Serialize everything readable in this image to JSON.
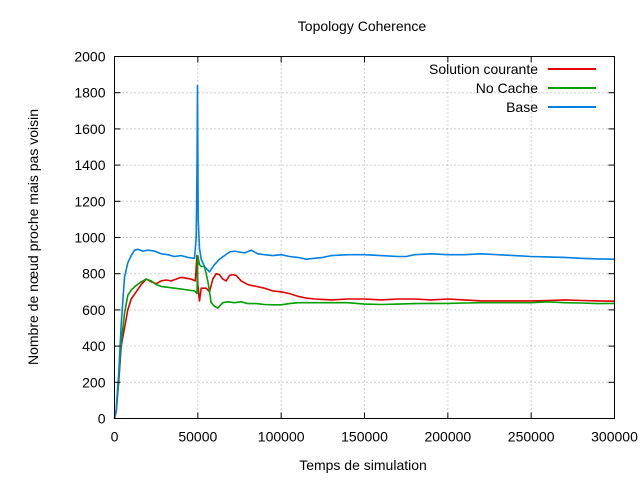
{
  "chart_data": {
    "type": "line",
    "title": "Topology Coherence",
    "xlabel": "Temps de simulation",
    "ylabel": "Nombre de nœud proche mais pas voisin",
    "xlim": [
      0,
      300000
    ],
    "ylim": [
      0,
      2000
    ],
    "x_ticks": [
      0,
      50000,
      100000,
      150000,
      200000,
      250000,
      300000
    ],
    "x_tick_labels": [
      "0",
      "50000",
      "100000",
      "150000",
      "200000",
      "250000",
      "300000"
    ],
    "y_ticks": [
      0,
      200,
      400,
      600,
      800,
      1000,
      1200,
      1400,
      1600,
      1800,
      2000
    ],
    "y_tick_labels": [
      "0",
      "200",
      "400",
      "600",
      "800",
      "1000",
      "1200",
      "1400",
      "1600",
      "1800",
      "2000"
    ],
    "grid": true,
    "legend_position": "top-right",
    "series": [
      {
        "name": "Solution courante",
        "color": "#e00000",
        "points": [
          [
            0,
            0
          ],
          [
            1000,
            40
          ],
          [
            2500,
            200
          ],
          [
            4000,
            400
          ],
          [
            6000,
            500
          ],
          [
            8000,
            600
          ],
          [
            10000,
            660
          ],
          [
            13000,
            700
          ],
          [
            16000,
            740
          ],
          [
            19000,
            770
          ],
          [
            22000,
            755
          ],
          [
            25000,
            745
          ],
          [
            28000,
            760
          ],
          [
            31000,
            765
          ],
          [
            34000,
            760
          ],
          [
            37000,
            770
          ],
          [
            40000,
            780
          ],
          [
            43000,
            775
          ],
          [
            46000,
            770
          ],
          [
            48500,
            760
          ],
          [
            49500,
            900
          ],
          [
            50000,
            740
          ],
          [
            51000,
            650
          ],
          [
            52000,
            720
          ],
          [
            55000,
            720
          ],
          [
            57000,
            700
          ],
          [
            59000,
            770
          ],
          [
            61000,
            800
          ],
          [
            63000,
            795
          ],
          [
            65000,
            770
          ],
          [
            67000,
            760
          ],
          [
            69000,
            790
          ],
          [
            71000,
            795
          ],
          [
            73000,
            790
          ],
          [
            76000,
            760
          ],
          [
            80000,
            740
          ],
          [
            85000,
            730
          ],
          [
            90000,
            720
          ],
          [
            95000,
            705
          ],
          [
            100000,
            700
          ],
          [
            105000,
            690
          ],
          [
            110000,
            675
          ],
          [
            115000,
            665
          ],
          [
            120000,
            660
          ],
          [
            130000,
            655
          ],
          [
            140000,
            660
          ],
          [
            150000,
            660
          ],
          [
            160000,
            655
          ],
          [
            170000,
            660
          ],
          [
            180000,
            660
          ],
          [
            190000,
            655
          ],
          [
            200000,
            660
          ],
          [
            210000,
            655
          ],
          [
            220000,
            650
          ],
          [
            230000,
            650
          ],
          [
            240000,
            650
          ],
          [
            250000,
            650
          ],
          [
            260000,
            652
          ],
          [
            270000,
            655
          ],
          [
            280000,
            652
          ],
          [
            290000,
            650
          ],
          [
            300000,
            648
          ]
        ]
      },
      {
        "name": "No Cache",
        "color": "#00a000",
        "points": [
          [
            0,
            0
          ],
          [
            1000,
            40
          ],
          [
            2500,
            220
          ],
          [
            4000,
            420
          ],
          [
            6000,
            580
          ],
          [
            8000,
            680
          ],
          [
            10000,
            710
          ],
          [
            13000,
            735
          ],
          [
            16000,
            755
          ],
          [
            19000,
            770
          ],
          [
            22000,
            760
          ],
          [
            25000,
            740
          ],
          [
            28000,
            730
          ],
          [
            32000,
            725
          ],
          [
            36000,
            720
          ],
          [
            40000,
            715
          ],
          [
            44000,
            710
          ],
          [
            48000,
            705
          ],
          [
            49500,
            690
          ],
          [
            50000,
            900
          ],
          [
            51000,
            850
          ],
          [
            52000,
            840
          ],
          [
            54000,
            840
          ],
          [
            56000,
            760
          ],
          [
            58000,
            640
          ],
          [
            60000,
            620
          ],
          [
            62000,
            610
          ],
          [
            65000,
            640
          ],
          [
            68000,
            645
          ],
          [
            72000,
            640
          ],
          [
            76000,
            645
          ],
          [
            80000,
            635
          ],
          [
            85000,
            635
          ],
          [
            90000,
            630
          ],
          [
            95000,
            628
          ],
          [
            100000,
            628
          ],
          [
            105000,
            635
          ],
          [
            110000,
            640
          ],
          [
            120000,
            640
          ],
          [
            130000,
            640
          ],
          [
            140000,
            640
          ],
          [
            150000,
            632
          ],
          [
            160000,
            630
          ],
          [
            170000,
            632
          ],
          [
            180000,
            635
          ],
          [
            190000,
            636
          ],
          [
            200000,
            636
          ],
          [
            210000,
            638
          ],
          [
            220000,
            640
          ],
          [
            230000,
            640
          ],
          [
            240000,
            640
          ],
          [
            250000,
            640
          ],
          [
            260000,
            645
          ],
          [
            270000,
            640
          ],
          [
            280000,
            638
          ],
          [
            290000,
            635
          ],
          [
            300000,
            636
          ]
        ]
      },
      {
        "name": "Base",
        "color": "#0080e0",
        "points": [
          [
            0,
            0
          ],
          [
            1000,
            50
          ],
          [
            2500,
            250
          ],
          [
            4000,
            520
          ],
          [
            6000,
            780
          ],
          [
            8000,
            860
          ],
          [
            10000,
            900
          ],
          [
            12000,
            930
          ],
          [
            14000,
            935
          ],
          [
            17000,
            925
          ],
          [
            20000,
            930
          ],
          [
            24000,
            925
          ],
          [
            28000,
            910
          ],
          [
            32000,
            905
          ],
          [
            36000,
            895
          ],
          [
            40000,
            900
          ],
          [
            44000,
            890
          ],
          [
            48000,
            885
          ],
          [
            49000,
            1000
          ],
          [
            49500,
            1380
          ],
          [
            49800,
            1840
          ],
          [
            50200,
            1100
          ],
          [
            51000,
            940
          ],
          [
            52000,
            880
          ],
          [
            54000,
            840
          ],
          [
            57000,
            810
          ],
          [
            60000,
            850
          ],
          [
            63000,
            880
          ],
          [
            66000,
            900
          ],
          [
            69000,
            920
          ],
          [
            72000,
            925
          ],
          [
            75000,
            920
          ],
          [
            78000,
            915
          ],
          [
            82000,
            930
          ],
          [
            86000,
            910
          ],
          [
            90000,
            905
          ],
          [
            95000,
            900
          ],
          [
            100000,
            905
          ],
          [
            105000,
            895
          ],
          [
            110000,
            890
          ],
          [
            115000,
            880
          ],
          [
            120000,
            885
          ],
          [
            125000,
            890
          ],
          [
            130000,
            900
          ],
          [
            140000,
            905
          ],
          [
            150000,
            905
          ],
          [
            160000,
            900
          ],
          [
            170000,
            895
          ],
          [
            175000,
            895
          ],
          [
            180000,
            905
          ],
          [
            190000,
            910
          ],
          [
            200000,
            905
          ],
          [
            210000,
            905
          ],
          [
            220000,
            910
          ],
          [
            230000,
            905
          ],
          [
            240000,
            900
          ],
          [
            250000,
            895
          ],
          [
            260000,
            893
          ],
          [
            270000,
            890
          ],
          [
            280000,
            885
          ],
          [
            290000,
            882
          ],
          [
            300000,
            880
          ]
        ]
      }
    ]
  }
}
